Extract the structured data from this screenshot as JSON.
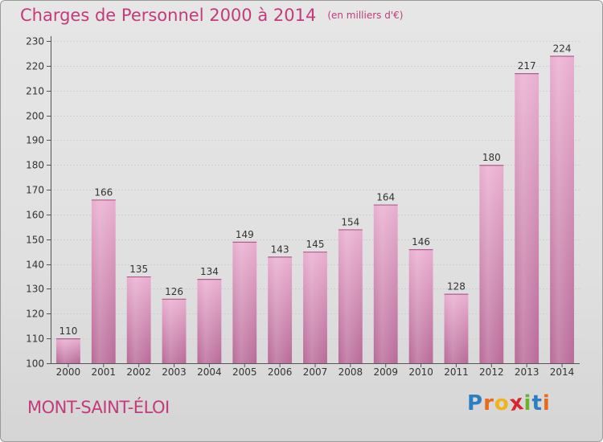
{
  "title": "Charges de Personnel 2000 à 2014",
  "subtitle": "(en milliers d'€)",
  "commune": "MONT-SAINT-ÉLOI",
  "logo": {
    "letters": [
      "P",
      "r",
      "o",
      "x",
      "i",
      "t",
      "i"
    ],
    "colors": [
      "#2a7fc0",
      "#e86a1a",
      "#f2b21b",
      "#d8262e",
      "#6ab42d",
      "#2a7fc0",
      "#e86a1a"
    ]
  },
  "colors": {
    "bar_light": "#e9aecf",
    "bar_dark": "#b86a98",
    "text": "#333333",
    "grid": "#cfcfcf"
  },
  "chart_data": {
    "type": "bar",
    "categories": [
      "2000",
      "2001",
      "2002",
      "2003",
      "2004",
      "2005",
      "2006",
      "2007",
      "2008",
      "2009",
      "2010",
      "2011",
      "2012",
      "2013",
      "2014"
    ],
    "values": [
      110,
      166,
      135,
      126,
      134,
      149,
      143,
      145,
      154,
      164,
      146,
      128,
      180,
      217,
      224
    ],
    "ylim": [
      100,
      230
    ],
    "yticks": [
      100,
      110,
      120,
      130,
      140,
      150,
      160,
      170,
      180,
      190,
      200,
      210,
      220,
      230
    ],
    "grid": true
  }
}
